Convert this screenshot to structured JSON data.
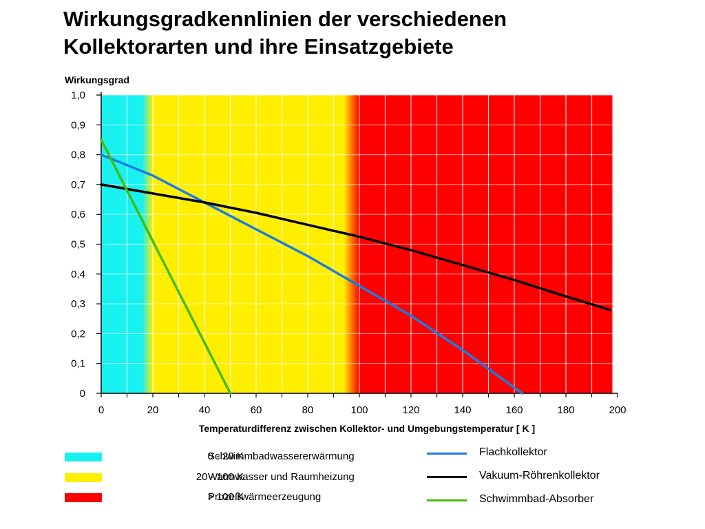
{
  "title": {
    "line1": "Wirkungsgradkennlinien der verschiedenen",
    "line2": "Kollektorarten und ihre Einsatzgebiete"
  },
  "chart_data": {
    "type": "line",
    "ylabel": "Wirkungsgrad",
    "xlabel": "Temperaturdifferenz  zwischen Kollektor- und Umgebungstemperatur [ K ]",
    "xlim": [
      0,
      200
    ],
    "ylim": [
      0,
      1.0
    ],
    "x_ticks": [
      "0",
      "20",
      "40",
      "60",
      "80",
      "100",
      "120",
      "140",
      "160",
      "180",
      "200"
    ],
    "y_ticks": [
      "0",
      "0,1",
      "0,2",
      "0,3",
      "0,4",
      "0,5",
      "0,6",
      "0,7",
      "0,8",
      "0,9",
      "1,0"
    ],
    "grid": true,
    "background_bands": [
      {
        "range": [
          0,
          20
        ],
        "color": "#19f0f0"
      },
      {
        "range": [
          20,
          100
        ],
        "color": "#ffee00"
      },
      {
        "range": [
          100,
          198
        ],
        "color": "#ff0000"
      }
    ],
    "series": [
      {
        "name": "Flachkollektor",
        "color": "#1a7de0",
        "x": [
          0,
          20,
          40,
          60,
          80,
          100,
          120,
          140,
          163
        ],
        "y": [
          0.8,
          0.73,
          0.64,
          0.55,
          0.46,
          0.36,
          0.26,
          0.145,
          0.0
        ]
      },
      {
        "name": "Vakuum-Röhrenkollektor",
        "color": "#000000",
        "x": [
          0,
          20,
          40,
          60,
          80,
          100,
          120,
          140,
          160,
          180,
          197
        ],
        "y": [
          0.7,
          0.67,
          0.64,
          0.605,
          0.565,
          0.525,
          0.48,
          0.43,
          0.38,
          0.325,
          0.28
        ]
      },
      {
        "name": "Schwimmbad-Absorber",
        "color": "#44bb11",
        "x": [
          0,
          10,
          20,
          30,
          40,
          50
        ],
        "y": [
          0.85,
          0.68,
          0.51,
          0.34,
          0.17,
          0.0
        ]
      }
    ]
  },
  "legend": {
    "areas": [
      {
        "range": "0 - 20 K",
        "usage": "Schwimmbadwassererwärmung",
        "color": "#19f0f0"
      },
      {
        "range": "20 - 100 K",
        "usage": "Warmwasser und Raumheizung",
        "color": "#ffee00"
      },
      {
        "range": "> 100 K",
        "usage": "Prozeßwärmeerzeugung",
        "color": "#ff0000"
      }
    ],
    "lines": [
      {
        "label": "Flachkollektor",
        "color": "#1a7de0"
      },
      {
        "label": "Vakuum-Röhrenkollektor",
        "color": "#000000"
      },
      {
        "label": "Schwimmbad-Absorber",
        "color": "#44bb11"
      }
    ]
  }
}
